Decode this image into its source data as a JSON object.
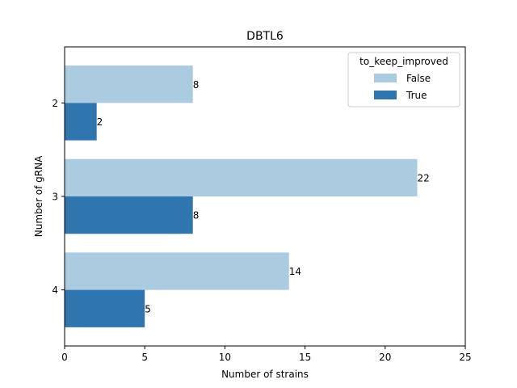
{
  "chart_data": {
    "type": "bar",
    "orientation": "horizontal",
    "title": "DBTL6",
    "xlabel": "Number of strains",
    "ylabel": "Number of gRNA",
    "categories": [
      "2",
      "3",
      "4"
    ],
    "series": [
      {
        "name": "False",
        "values": [
          8,
          22,
          14
        ],
        "color": "#abcce0"
      },
      {
        "name": "True",
        "values": [
          2,
          8,
          5
        ],
        "color": "#2e76ad"
      }
    ],
    "xlim": [
      0,
      25
    ],
    "xticks": [
      0,
      5,
      10,
      15,
      20,
      25
    ],
    "grid": false,
    "legend": {
      "title": "to_keep_improved",
      "placement": "top-right"
    }
  }
}
